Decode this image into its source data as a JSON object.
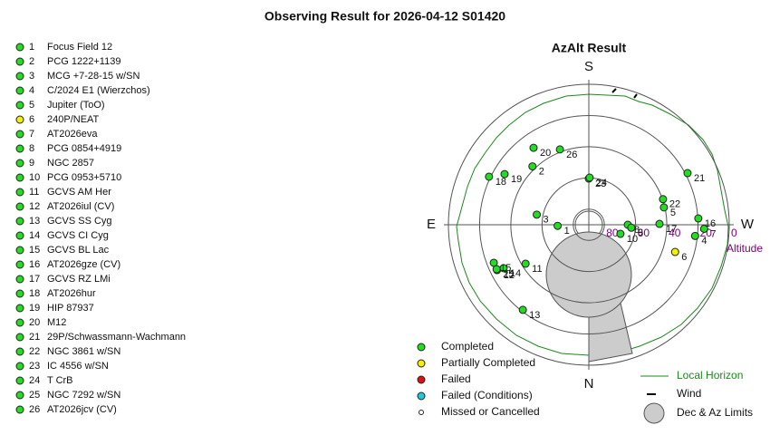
{
  "title": "Observing Result for 2026-04-12 S01420",
  "plot": {
    "title": "AzAlt Result",
    "directions": {
      "S": "S",
      "N": "N",
      "E": "E",
      "W": "W"
    },
    "axis_label": "Altitude",
    "altitude_ticks": [
      80,
      60,
      40,
      20,
      0
    ]
  },
  "statuses": [
    {
      "name": "Completed",
      "color": "#22dd22"
    },
    {
      "name": "Partially Completed",
      "color": "#f2f200"
    },
    {
      "name": "Failed",
      "color": "#e01010"
    },
    {
      "name": "Failed (Conditions)",
      "color": "#20c8d8"
    },
    {
      "name": "Missed or Cancelled",
      "color": "#ffffff"
    }
  ],
  "legend_extra": {
    "horizon": "Local Horizon",
    "wind": "Wind",
    "limits": "Dec & Az Limits"
  },
  "targets": [
    {
      "id": 1,
      "name": "Focus Field 12",
      "status": 0,
      "alt": 70,
      "az": 88
    },
    {
      "id": 2,
      "name": "PCG 1222+1139",
      "status": 0,
      "alt": 38,
      "az": 136
    },
    {
      "id": 3,
      "name": "MCG +7-28-15 w/SN",
      "status": 0,
      "alt": 56,
      "az": 101
    },
    {
      "id": 4,
      "name": "C/2024 E1 (Wierzchos)",
      "status": 0,
      "alt": 21.5,
      "az": 276
    },
    {
      "id": 5,
      "name": "Jupiter (ToO)",
      "status": 0,
      "alt": 40.6,
      "az": 257
    },
    {
      "id": 6,
      "name": "240P/NEAT",
      "status": 1,
      "alt": 32,
      "az": 287.5
    },
    {
      "id": 7,
      "name": "AT2026eva",
      "status": 0,
      "alt": 16,
      "az": 272
    },
    {
      "id": 8,
      "name": "PCG 0854+4919",
      "status": 0,
      "alt": 65,
      "az": 270
    },
    {
      "id": 9,
      "name": "NGC 2857",
      "status": 0,
      "alt": 62.7,
      "az": 274
    },
    {
      "id": 10,
      "name": "PCG 0953+5710",
      "status": 0,
      "alt": 68.9,
      "az": 286
    },
    {
      "id": 11,
      "name": "GCVS AM Her",
      "status": 0,
      "alt": 42.4,
      "az": 58.4
    },
    {
      "id": 12,
      "name": "AT2026iul (CV)",
      "status": 0,
      "alt": 24.4,
      "az": 63.7
    },
    {
      "id": 13,
      "name": "GCVS SS Cyg",
      "status": 0,
      "alt": 21,
      "az": 37.8
    },
    {
      "id": 14,
      "name": "GCVS CI Cyg",
      "status": 0,
      "alt": 28.7,
      "az": 63
    },
    {
      "id": 15,
      "name": "GCVS BL Lac",
      "status": 0,
      "alt": 24.4,
      "az": 68.2
    },
    {
      "id": 16,
      "name": "AT2026gze (CV)",
      "status": 0,
      "alt": 19.7,
      "az": 266.7
    },
    {
      "id": 17,
      "name": "GCVS RZ LMi",
      "status": 0,
      "alt": 44.7,
      "az": 269.3
    },
    {
      "id": 18,
      "name": "AT2026hur",
      "status": 0,
      "alt": 19,
      "az": 115.7
    },
    {
      "id": 19,
      "name": "HIP 87937",
      "status": 0,
      "alt": 27,
      "az": 121
    },
    {
      "id": 20,
      "name": "M12",
      "status": 0,
      "alt": 29.3,
      "az": 144.3
    },
    {
      "id": 21,
      "name": "29P/Schwassmann-Wachmann",
      "status": 0,
      "alt": 18.6,
      "az": 242.4
    },
    {
      "id": 22,
      "name": "NGC 3861 w/SN",
      "status": 0,
      "alt": 39.7,
      "az": 251
    },
    {
      "id": 23,
      "name": "IC 4556 w/SN",
      "status": 0,
      "alt": 60.4,
      "az": 180
    },
    {
      "id": 24,
      "name": "T CrB",
      "status": 0,
      "alt": 59.8,
      "az": 181
    },
    {
      "id": 25,
      "name": "NGC 7292 w/SN",
      "status": 0,
      "alt": 24.4,
      "az": 64.3
    },
    {
      "id": 26,
      "name": "AT2026jcv (CV)",
      "status": 0,
      "alt": 38.3,
      "az": 159
    }
  ]
}
